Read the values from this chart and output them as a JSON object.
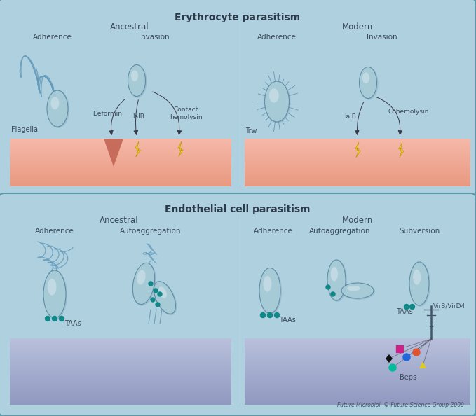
{
  "outer_bg": "#4da8b8",
  "panel1_bg": "#afd0df",
  "panel2_bg": "#afd0df",
  "erythrocyte_surface_top": "#f5b8a8",
  "erythrocyte_surface_bot": "#e8a090",
  "endothelial_surface_top": "#b0b8d8",
  "endothelial_surface_bot": "#9098c0",
  "bact_fill": "#a8ccd8",
  "bact_fill_light": "#c8e0e8",
  "bact_outline": "#5888a0",
  "taa_color": "#108888",
  "arrow_color": "#3a3a4a",
  "text_color": "#3a4a5a",
  "title_color": "#2a3a4a",
  "panel1_title": "Erythrocyte parasitism",
  "panel2_title": "Endothelial cell parasitism",
  "copyright": "Future Microbiol. © Future Science Group 2009",
  "beps_colors": [
    "#cc2288",
    "#111111",
    "#00bb99",
    "#2266dd",
    "#dd5533",
    "#ddcc22"
  ],
  "beps_shapes": [
    "s",
    "D",
    "o",
    "o",
    "o",
    "^"
  ]
}
